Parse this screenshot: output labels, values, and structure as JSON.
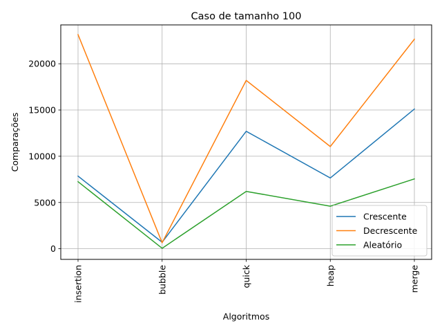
{
  "chart_data": {
    "type": "line",
    "title": "Caso  de tamanho 100",
    "xlabel": "Algoritmos",
    "ylabel": "Comparações",
    "categories": [
      "insertion",
      "bubble",
      "quick",
      "heap",
      "merge"
    ],
    "ylim": [
      -1150,
      24200
    ],
    "yticks": [
      0,
      5000,
      10000,
      15000,
      20000
    ],
    "ytick_labels": [
      "0",
      "5000",
      "10000",
      "15000",
      "20000"
    ],
    "grid": true,
    "legend_position": "lower-right",
    "series": [
      {
        "name": "Crescente",
        "color": "#1f77b4",
        "values": [
          7850,
          700,
          12700,
          7650,
          15100
        ]
      },
      {
        "name": "Decrescente",
        "color": "#ff7f0e",
        "values": [
          23150,
          650,
          18200,
          11050,
          22650
        ]
      },
      {
        "name": "Aleatório",
        "color": "#2ca02c",
        "values": [
          7250,
          50,
          6200,
          4600,
          7550
        ]
      }
    ]
  }
}
